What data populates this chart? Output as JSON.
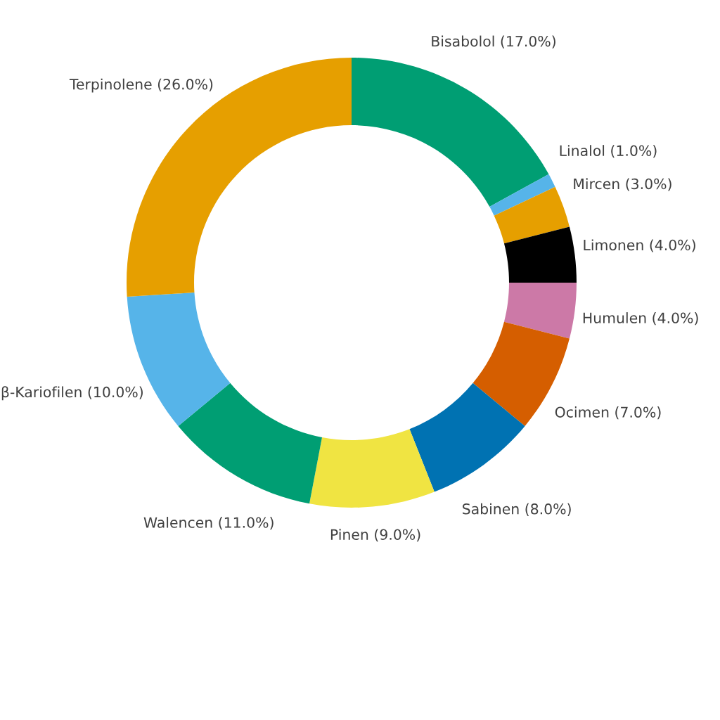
{
  "chart_data": {
    "type": "donut",
    "categories": [
      "Bisabolol (17.0%)",
      "Linalol (1.0%)",
      "Mircen (3.0%)",
      "Limonen (4.0%)",
      "Humulen (4.0%)",
      "Ocimen (7.0%)",
      "Sabinen (8.0%)",
      "Pinen (9.0%)",
      "Walencen (11.0%)",
      "β-Kariofilen (10.0%)",
      "Terpinolene (26.0%)"
    ],
    "values": [
      17,
      1,
      3,
      4,
      4,
      7,
      8,
      9,
      11,
      10,
      26
    ],
    "colors": [
      "#009e73",
      "#56b4e9",
      "#e69f00",
      "#000000",
      "#cc79a7",
      "#d55e00",
      "#0072b2",
      "#f0e442",
      "#009e73",
      "#56b4e9",
      "#e69f00"
    ]
  }
}
